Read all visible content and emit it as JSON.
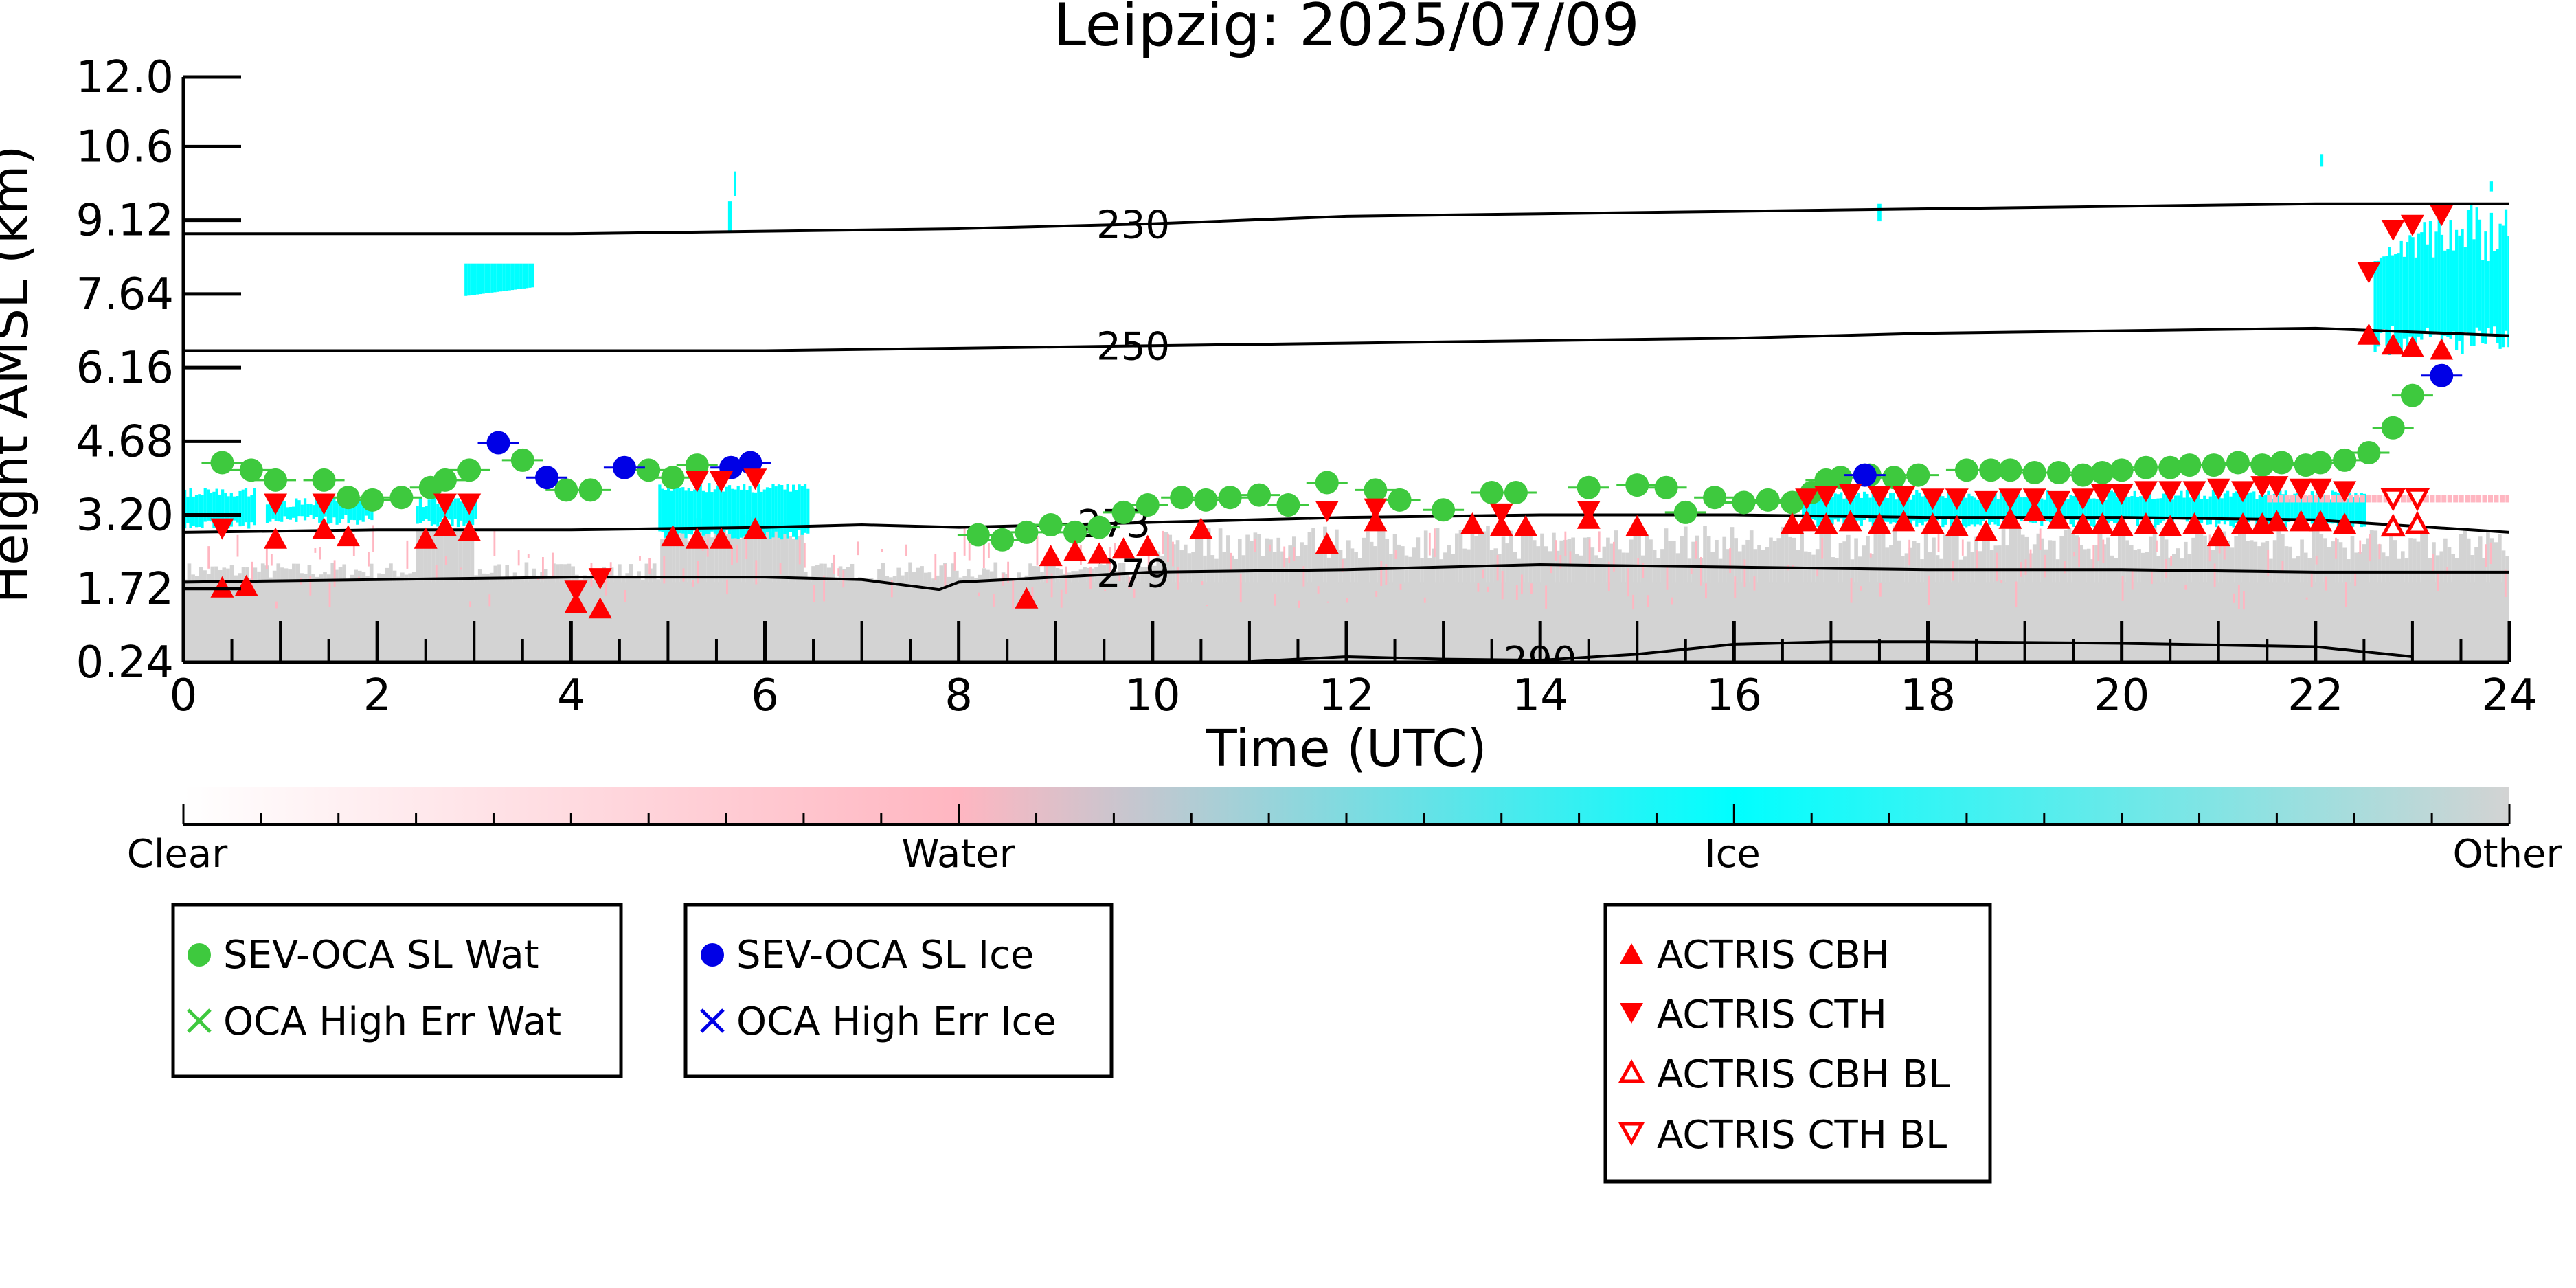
{
  "chart_data": {
    "type": "scatter",
    "title": "Leipzig: 2025/07/09",
    "xlabel": "Time (UTC)",
    "ylabel": "Height AMSL (km)",
    "xlim": [
      0,
      24
    ],
    "ylim": [
      0.24,
      12.0
    ],
    "x_ticks": [
      "0",
      "2",
      "4",
      "6",
      "8",
      "10",
      "12",
      "14",
      "16",
      "18",
      "20",
      "22",
      "24"
    ],
    "y_ticks": [
      "0.24",
      "1.72",
      "3.20",
      "4.68",
      "6.16",
      "7.64",
      "9.12",
      "10.6",
      "12.0"
    ],
    "colorbar": {
      "labels": [
        "Clear",
        "Water",
        "Ice",
        "Other"
      ],
      "colors": [
        "#ffffff",
        "#ffb6c1",
        "#00ffff",
        "#d3d3d3"
      ]
    },
    "isotherms": [
      {
        "label": "230",
        "x": [
          0,
          2,
          4,
          6,
          8,
          10,
          12,
          14,
          16,
          18,
          20,
          22,
          24
        ],
        "y": [
          8.85,
          8.85,
          8.85,
          8.9,
          8.95,
          9.05,
          9.2,
          9.25,
          9.3,
          9.35,
          9.4,
          9.45,
          9.45
        ]
      },
      {
        "label": "250",
        "x": [
          0,
          2,
          4,
          6,
          8,
          10,
          12,
          14,
          16,
          18,
          20,
          22,
          24
        ],
        "y": [
          6.5,
          6.5,
          6.5,
          6.5,
          6.55,
          6.6,
          6.65,
          6.7,
          6.75,
          6.85,
          6.9,
          6.95,
          6.8
        ]
      },
      {
        "label": "273",
        "x": [
          0,
          2,
          4,
          6,
          7,
          8,
          10,
          12,
          14,
          16,
          18,
          20,
          22,
          24
        ],
        "y": [
          2.85,
          2.9,
          2.9,
          2.95,
          3.0,
          2.95,
          3.05,
          3.15,
          3.2,
          3.2,
          3.15,
          3.15,
          3.1,
          2.85
        ]
      },
      {
        "label": "279",
        "x": [
          0,
          2,
          4,
          6,
          7,
          7.8,
          8,
          9,
          10,
          12,
          14,
          16,
          18,
          20,
          22,
          24
        ],
        "y": [
          1.85,
          1.9,
          1.95,
          1.95,
          1.9,
          1.7,
          1.85,
          1.95,
          2.05,
          2.1,
          2.2,
          2.15,
          2.1,
          2.1,
          2.05,
          2.05
        ]
      },
      {
        "label": "290",
        "x": [
          11,
          12,
          13,
          14,
          15,
          16,
          17,
          18,
          20,
          22,
          23
        ],
        "y": [
          0.25,
          0.35,
          0.3,
          0.28,
          0.4,
          0.6,
          0.65,
          0.65,
          0.62,
          0.55,
          0.35
        ]
      }
    ],
    "series": [
      {
        "name": "SEV-OCA SL Wat",
        "color": "#3ec93e",
        "marker": "circle",
        "x": [
          0.4,
          0.7,
          0.95,
          1.45,
          1.7,
          1.95,
          2.25,
          2.55,
          2.7,
          2.95,
          3.5,
          3.95,
          4.2,
          4.8,
          5.05,
          5.3,
          8.2,
          8.45,
          8.7,
          8.95,
          9.2,
          9.45,
          9.7,
          9.95,
          10.3,
          10.55,
          10.8,
          11.1,
          11.4,
          11.8,
          12.3,
          12.55,
          13.0,
          13.5,
          13.75,
          14.5,
          15.0,
          15.3,
          15.5,
          15.8,
          16.1,
          16.35,
          16.6,
          16.8,
          16.95,
          17.1,
          17.4,
          17.65,
          17.9,
          18.4,
          18.65,
          18.85,
          19.1,
          19.35,
          19.6,
          19.8,
          20.0,
          20.25,
          20.5,
          20.7,
          20.95,
          21.2,
          21.45,
          21.65,
          21.9,
          22.05,
          22.3,
          22.55,
          22.8,
          23.0
        ],
        "y": [
          4.25,
          4.1,
          3.9,
          3.9,
          3.55,
          3.5,
          3.55,
          3.75,
          3.9,
          4.1,
          4.3,
          3.7,
          3.7,
          4.1,
          3.95,
          4.2,
          2.8,
          2.7,
          2.85,
          3.0,
          2.85,
          2.95,
          3.25,
          3.4,
          3.55,
          3.5,
          3.55,
          3.6,
          3.4,
          3.85,
          3.7,
          3.5,
          3.3,
          3.65,
          3.65,
          3.75,
          3.8,
          3.75,
          3.25,
          3.55,
          3.45,
          3.5,
          3.45,
          3.65,
          3.9,
          3.95,
          4.0,
          3.95,
          4.0,
          4.1,
          4.1,
          4.1,
          4.05,
          4.05,
          4.0,
          4.05,
          4.1,
          4.15,
          4.15,
          4.2,
          4.2,
          4.25,
          4.2,
          4.25,
          4.2,
          4.25,
          4.3,
          4.45,
          4.95,
          5.6
        ]
      },
      {
        "name": "SEV-OCA SL Ice",
        "color": "#0000e6",
        "marker": "circle",
        "x": [
          3.25,
          3.75,
          4.55,
          5.65,
          5.85,
          17.35,
          23.3
        ],
        "y": [
          4.65,
          3.95,
          4.15,
          4.15,
          4.25,
          4.0,
          6.0
        ]
      },
      {
        "name": "ACTRIS CBH",
        "color": "#ff0000",
        "marker": "triangle-up",
        "x": [
          0.4,
          0.65,
          0.95,
          1.45,
          1.7,
          2.5,
          2.7,
          2.95,
          4.05,
          4.3,
          5.05,
          5.3,
          5.55,
          5.9,
          8.7,
          8.95,
          9.2,
          9.45,
          9.7,
          9.95,
          10.5,
          11.8,
          12.3,
          13.3,
          13.6,
          13.85,
          14.5,
          15.0,
          16.6,
          16.75,
          16.95,
          17.2,
          17.5,
          17.75,
          18.05,
          18.3,
          18.6,
          18.85,
          19.1,
          19.35,
          19.6,
          19.8,
          20.0,
          20.25,
          20.5,
          20.75,
          21.0,
          21.25,
          21.45,
          21.6,
          21.85,
          22.05,
          22.3,
          22.55,
          22.8,
          23.0,
          23.3
        ],
        "y": [
          1.72,
          1.75,
          2.7,
          2.9,
          2.75,
          2.7,
          2.95,
          2.85,
          1.4,
          1.3,
          2.75,
          2.7,
          2.7,
          2.9,
          1.5,
          2.35,
          2.45,
          2.4,
          2.5,
          2.55,
          2.9,
          2.6,
          3.05,
          3.0,
          2.95,
          2.95,
          3.1,
          2.95,
          3.0,
          3.05,
          3.0,
          3.05,
          3.0,
          3.05,
          3.0,
          2.95,
          2.85,
          3.1,
          3.25,
          3.1,
          3.0,
          3.0,
          2.95,
          3.0,
          2.95,
          3.0,
          2.75,
          3.0,
          3.0,
          3.05,
          3.05,
          3.05,
          3.0,
          6.8,
          6.6,
          6.55,
          6.5
        ]
      },
      {
        "name": "ACTRIS CTH",
        "color": "#ff0000",
        "marker": "triangle-down",
        "x": [
          0.4,
          0.95,
          1.45,
          2.7,
          2.95,
          4.05,
          4.3,
          5.3,
          5.55,
          5.9,
          11.8,
          12.3,
          13.6,
          14.5,
          16.75,
          16.95,
          17.2,
          17.5,
          17.75,
          18.05,
          18.3,
          18.6,
          18.85,
          19.1,
          19.35,
          19.6,
          19.8,
          20.0,
          20.25,
          20.5,
          20.75,
          21.0,
          21.25,
          21.45,
          21.6,
          21.85,
          22.05,
          22.3,
          22.55,
          22.8,
          23.0,
          23.3
        ],
        "y": [
          2.95,
          3.45,
          3.45,
          3.45,
          3.45,
          1.7,
          1.95,
          3.9,
          3.9,
          3.95,
          3.3,
          3.35,
          3.25,
          3.3,
          3.55,
          3.6,
          3.65,
          3.6,
          3.6,
          3.55,
          3.55,
          3.5,
          3.55,
          3.55,
          3.5,
          3.55,
          3.65,
          3.65,
          3.7,
          3.7,
          3.7,
          3.75,
          3.7,
          3.8,
          3.8,
          3.75,
          3.75,
          3.7,
          8.1,
          8.95,
          9.05,
          9.25
        ]
      },
      {
        "name": "ACTRIS CBH BL",
        "color": "#ff0000",
        "marker": "triangle-up-open",
        "x": [
          22.8,
          23.05
        ],
        "y": [
          2.95,
          3.0
        ]
      },
      {
        "name": "ACTRIS CTH BL",
        "color": "#ff0000",
        "marker": "triangle-down-open",
        "x": [
          22.8,
          23.05
        ],
        "y": [
          3.55,
          3.55
        ]
      }
    ],
    "legend_missing_entries": [
      "OCA High Err Wat",
      "OCA High Err Ice"
    ],
    "grid": false,
    "legend_placement": "below"
  }
}
